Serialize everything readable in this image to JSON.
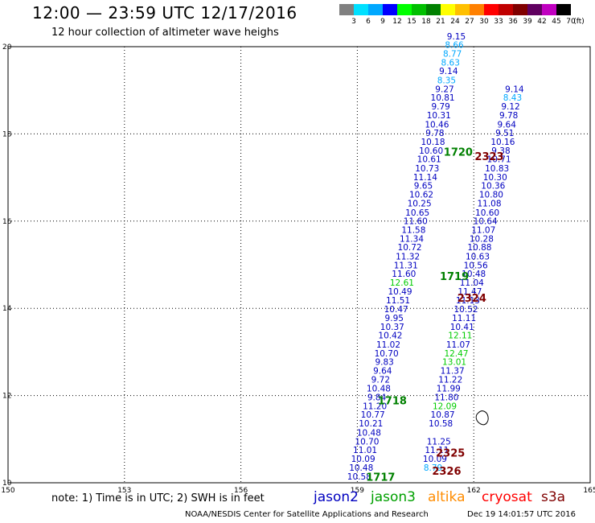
{
  "header": {
    "title": "12:00 — 23:59 UTC 12/17/2016",
    "subtitle": "12 hour collection of altimeter wave heighs"
  },
  "legend": {
    "unit": "(ft)",
    "bins": [
      {
        "label": "3",
        "color": "#808080"
      },
      {
        "label": "6",
        "color": "#00e0ff"
      },
      {
        "label": "9",
        "color": "#00a8ff"
      },
      {
        "label": "12",
        "color": "#0000ff"
      },
      {
        "label": "15",
        "color": "#00ff00"
      },
      {
        "label": "18",
        "color": "#00c000"
      },
      {
        "label": "21",
        "color": "#008000"
      },
      {
        "label": "24",
        "color": "#ffff00"
      },
      {
        "label": "27",
        "color": "#ffc000"
      },
      {
        "label": "30",
        "color": "#ff8000"
      },
      {
        "label": "33",
        "color": "#ff0000"
      },
      {
        "label": "36",
        "color": "#c00000"
      },
      {
        "label": "39",
        "color": "#800000"
      },
      {
        "label": "42",
        "color": "#600060"
      },
      {
        "label": "45",
        "color": "#c000c0"
      },
      {
        "label": "70",
        "color": "#000000"
      }
    ]
  },
  "map": {
    "lon_range": [
      150,
      165
    ],
    "lat_range": [
      10,
      20
    ],
    "lon_labels": [
      "150",
      "153",
      "156",
      "159",
      "162",
      "165"
    ],
    "lat_labels": [
      "10",
      "12",
      "14",
      "16",
      "18",
      "20"
    ],
    "tracks": [
      {
        "id": "track-a",
        "color": "#0000c0",
        "values": [
          {
            "t": "10.58",
            "lon": 159.05,
            "lat": 10.07
          },
          {
            "t": "10.48",
            "lon": 159.1,
            "lat": 10.28
          },
          {
            "t": "10.09",
            "lon": 159.15,
            "lat": 10.48
          },
          {
            "t": "11.01",
            "lon": 159.2,
            "lat": 10.68
          },
          {
            "t": "10.70",
            "lon": 159.25,
            "lat": 10.88
          },
          {
            "t": "10.48",
            "lon": 159.3,
            "lat": 11.08
          },
          {
            "t": "10.21",
            "lon": 159.35,
            "lat": 11.29
          },
          {
            "t": "10.77",
            "lon": 159.4,
            "lat": 11.49
          },
          {
            "t": "11.20",
            "lon": 159.45,
            "lat": 11.69
          },
          {
            "t": "9.84",
            "lon": 159.5,
            "lat": 11.89
          },
          {
            "t": "10.48",
            "lon": 159.55,
            "lat": 12.09
          },
          {
            "t": "9.72",
            "lon": 159.6,
            "lat": 12.3
          },
          {
            "t": "9.64",
            "lon": 159.65,
            "lat": 12.5
          },
          {
            "t": "9.83",
            "lon": 159.7,
            "lat": 12.7
          },
          {
            "t": "10.70",
            "lon": 159.75,
            "lat": 12.9
          },
          {
            "t": "11.02",
            "lon": 159.8,
            "lat": 13.1
          },
          {
            "t": "10.42",
            "lon": 159.85,
            "lat": 13.31
          },
          {
            "t": "10.37",
            "lon": 159.9,
            "lat": 13.51
          },
          {
            "t": "9.95",
            "lon": 159.95,
            "lat": 13.71
          },
          {
            "t": "10.47",
            "lon": 160.0,
            "lat": 13.91
          },
          {
            "t": "11.51",
            "lon": 160.05,
            "lat": 14.11
          },
          {
            "t": "10.49",
            "lon": 160.1,
            "lat": 14.32
          },
          {
            "t": "12.61",
            "lon": 160.15,
            "lat": 14.52,
            "color": "#00cc00"
          },
          {
            "t": "11.60",
            "lon": 160.2,
            "lat": 14.72
          },
          {
            "t": "11.31",
            "lon": 160.25,
            "lat": 14.92
          },
          {
            "t": "11.32",
            "lon": 160.3,
            "lat": 15.12
          },
          {
            "t": "10.72",
            "lon": 160.35,
            "lat": 15.33
          },
          {
            "t": "11.34",
            "lon": 160.4,
            "lat": 15.53
          },
          {
            "t": "11.58",
            "lon": 160.45,
            "lat": 15.73
          },
          {
            "t": "11.60",
            "lon": 160.5,
            "lat": 15.93
          },
          {
            "t": "10.65",
            "lon": 160.55,
            "lat": 16.13
          },
          {
            "t": "10.25",
            "lon": 160.6,
            "lat": 16.34
          },
          {
            "t": "10.62",
            "lon": 160.65,
            "lat": 16.54
          },
          {
            "t": "9.65",
            "lon": 160.7,
            "lat": 16.74
          },
          {
            "t": "11.14",
            "lon": 160.75,
            "lat": 16.94
          },
          {
            "t": "10.73",
            "lon": 160.8,
            "lat": 17.14
          },
          {
            "t": "10.61",
            "lon": 160.85,
            "lat": 17.35
          },
          {
            "t": "10.60",
            "lon": 160.9,
            "lat": 17.55
          },
          {
            "t": "10.18",
            "lon": 160.95,
            "lat": 17.75
          },
          {
            "t": "9.78",
            "lon": 161.0,
            "lat": 17.95
          },
          {
            "t": "10.46",
            "lon": 161.05,
            "lat": 18.15
          },
          {
            "t": "10.31",
            "lon": 161.1,
            "lat": 18.36
          },
          {
            "t": "9.79",
            "lon": 161.15,
            "lat": 18.56
          },
          {
            "t": "10.81",
            "lon": 161.2,
            "lat": 18.76
          },
          {
            "t": "9.27",
            "lon": 161.25,
            "lat": 18.96
          },
          {
            "t": "8.35",
            "lon": 161.3,
            "lat": 19.16,
            "color": "#00a8ff"
          },
          {
            "t": "9.14",
            "lon": 161.35,
            "lat": 19.37
          },
          {
            "t": "8.63",
            "lon": 161.4,
            "lat": 19.57,
            "color": "#00a8ff"
          },
          {
            "t": "8.77",
            "lon": 161.45,
            "lat": 19.77,
            "color": "#00a8ff"
          },
          {
            "t": "8.66",
            "lon": 161.5,
            "lat": 19.97,
            "color": "#00a8ff"
          },
          {
            "t": "9.15",
            "lon": 161.55,
            "lat": 20.17
          }
        ]
      },
      {
        "id": "track-b",
        "color": "#0000c0",
        "values": [
          {
            "t": "8.79",
            "lon": 160.95,
            "lat": 10.28,
            "color": "#00a8ff"
          },
          {
            "t": "10.09",
            "lon": 161.0,
            "lat": 10.48
          },
          {
            "t": "11.11",
            "lon": 161.05,
            "lat": 10.68
          },
          {
            "t": "11.25",
            "lon": 161.1,
            "lat": 10.88
          },
          {
            "t": "10.58",
            "lon": 161.15,
            "lat": 11.29
          },
          {
            "t": "10.87",
            "lon": 161.2,
            "lat": 11.49
          },
          {
            "t": "12.09",
            "lon": 161.25,
            "lat": 11.69,
            "color": "#00cc00"
          },
          {
            "t": "11.80",
            "lon": 161.3,
            "lat": 11.89
          },
          {
            "t": "11.99",
            "lon": 161.35,
            "lat": 12.09
          },
          {
            "t": "11.22",
            "lon": 161.4,
            "lat": 12.3
          },
          {
            "t": "11.37",
            "lon": 161.45,
            "lat": 12.5
          },
          {
            "t": "13.01",
            "lon": 161.5,
            "lat": 12.7,
            "color": "#00cc00"
          },
          {
            "t": "12.47",
            "lon": 161.55,
            "lat": 12.9,
            "color": "#00cc00"
          },
          {
            "t": "11.07",
            "lon": 161.6,
            "lat": 13.1
          },
          {
            "t": "12.11",
            "lon": 161.65,
            "lat": 13.31,
            "color": "#00cc00"
          },
          {
            "t": "10.41",
            "lon": 161.7,
            "lat": 13.51
          },
          {
            "t": "11.11",
            "lon": 161.75,
            "lat": 13.71
          },
          {
            "t": "10.52",
            "lon": 161.8,
            "lat": 13.91
          },
          {
            "t": "11.13",
            "lon": 161.85,
            "lat": 14.11
          },
          {
            "t": "11.47",
            "lon": 161.9,
            "lat": 14.32
          },
          {
            "t": "11.04",
            "lon": 161.95,
            "lat": 14.52
          },
          {
            "t": "10.48",
            "lon": 162.0,
            "lat": 14.72
          },
          {
            "t": "10.56",
            "lon": 162.05,
            "lat": 14.92
          },
          {
            "t": "10.63",
            "lon": 162.1,
            "lat": 15.12
          },
          {
            "t": "10.88",
            "lon": 162.15,
            "lat": 15.33
          },
          {
            "t": "10.28",
            "lon": 162.2,
            "lat": 15.53
          },
          {
            "t": "11.07",
            "lon": 162.25,
            "lat": 15.73
          },
          {
            "t": "10.64",
            "lon": 162.3,
            "lat": 15.93
          },
          {
            "t": "10.60",
            "lon": 162.35,
            "lat": 16.13
          },
          {
            "t": "11.08",
            "lon": 162.4,
            "lat": 16.34
          },
          {
            "t": "10.80",
            "lon": 162.45,
            "lat": 16.54
          },
          {
            "t": "10.36",
            "lon": 162.5,
            "lat": 16.74
          },
          {
            "t": "10.30",
            "lon": 162.55,
            "lat": 16.94
          },
          {
            "t": "10.83",
            "lon": 162.6,
            "lat": 17.14
          },
          {
            "t": "10.71",
            "lon": 162.65,
            "lat": 17.35
          },
          {
            "t": "9.38",
            "lon": 162.7,
            "lat": 17.55
          },
          {
            "t": "10.16",
            "lon": 162.75,
            "lat": 17.75
          },
          {
            "t": "9.51",
            "lon": 162.8,
            "lat": 17.95
          },
          {
            "t": "9.64",
            "lon": 162.85,
            "lat": 18.15
          },
          {
            "t": "9.78",
            "lon": 162.9,
            "lat": 18.36
          },
          {
            "t": "9.12",
            "lon": 162.95,
            "lat": 18.56
          },
          {
            "t": "8.43",
            "lon": 163.0,
            "lat": 18.76,
            "color": "#00a8ff"
          },
          {
            "t": "9.14",
            "lon": 163.05,
            "lat": 18.96
          }
        ]
      }
    ],
    "track_labels": [
      {
        "t": "1717",
        "color": "#008000",
        "lon": 159.6,
        "lat": 10.05
      },
      {
        "t": "1718",
        "color": "#008000",
        "lon": 159.9,
        "lat": 11.8
      },
      {
        "t": "1719",
        "color": "#008000",
        "lon": 161.5,
        "lat": 14.65
      },
      {
        "t": "1720",
        "color": "#008000",
        "lon": 161.6,
        "lat": 17.5
      },
      {
        "t": "2323",
        "color": "#800000",
        "lon": 162.4,
        "lat": 17.4
      },
      {
        "t": "2324",
        "color": "#800000",
        "lon": 161.95,
        "lat": 14.15
      },
      {
        "t": "2325",
        "color": "#800000",
        "lon": 161.4,
        "lat": 10.6
      },
      {
        "t": "2326",
        "color": "#800000",
        "lon": 161.3,
        "lat": 10.18
      }
    ]
  },
  "footer": {
    "note": "note: 1) Time is in UTC; 2) SWH is in feet",
    "satellites": [
      {
        "name": "jason2",
        "color": "#0000c0"
      },
      {
        "name": "jason3",
        "color": "#00a000"
      },
      {
        "name": "altika",
        "color": "#ff8c00"
      },
      {
        "name": "cryosat",
        "color": "#ff0000"
      },
      {
        "name": "s3a",
        "color": "#800000"
      }
    ],
    "credit": "NOAA/NESDIS Center for Satellite Applications and Research",
    "timestamp": "Dec 19 14:01:57 UTC 2016"
  }
}
